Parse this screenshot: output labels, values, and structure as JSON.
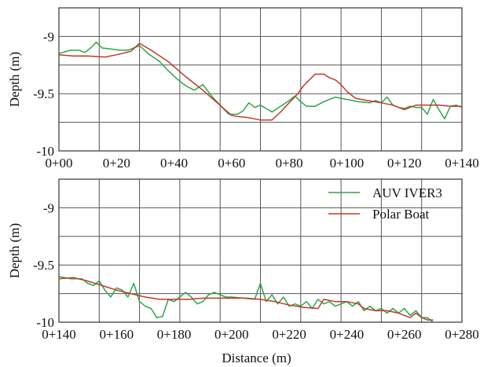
{
  "chart_data": [
    {
      "type": "line",
      "ylabel": "Depth (m)",
      "xlim": [
        0,
        140
      ],
      "ylim": [
        -10,
        -8.75
      ],
      "x_ticks": [
        0,
        20,
        40,
        60,
        80,
        100,
        120,
        140
      ],
      "x_tick_labels": [
        "0+00",
        "0+20",
        "0+40",
        "0+60",
        "0+80",
        "0+100",
        "0+120",
        "0+140"
      ],
      "y_ticks": [
        -9,
        -9.5,
        -10
      ],
      "y_tick_labels": [
        "-9",
        "-9.5",
        "-10"
      ],
      "grid": true,
      "series": [
        {
          "name": "AUV IVER3",
          "color": "#2ca64a",
          "points": [
            [
              0,
              -9.15
            ],
            [
              4,
              -9.12
            ],
            [
              7,
              -9.12
            ],
            [
              9,
              -9.14
            ],
            [
              11,
              -9.1
            ],
            [
              13,
              -9.05
            ],
            [
              15,
              -9.1
            ],
            [
              18,
              -9.11
            ],
            [
              21,
              -9.12
            ],
            [
              24,
              -9.12
            ],
            [
              26,
              -9.1
            ],
            [
              28,
              -9.08
            ],
            [
              31,
              -9.15
            ],
            [
              35,
              -9.22
            ],
            [
              38,
              -9.3
            ],
            [
              41,
              -9.37
            ],
            [
              44,
              -9.43
            ],
            [
              47,
              -9.47
            ],
            [
              50,
              -9.42
            ],
            [
              53,
              -9.52
            ],
            [
              56,
              -9.6
            ],
            [
              59,
              -9.68
            ],
            [
              62,
              -9.68
            ],
            [
              64,
              -9.65
            ],
            [
              66,
              -9.58
            ],
            [
              68,
              -9.62
            ],
            [
              70,
              -9.6
            ],
            [
              72,
              -9.63
            ],
            [
              74,
              -9.66
            ],
            [
              77,
              -9.61
            ],
            [
              80,
              -9.56
            ],
            [
              82,
              -9.52
            ],
            [
              84,
              -9.57
            ],
            [
              86,
              -9.61
            ],
            [
              89,
              -9.61
            ],
            [
              92,
              -9.57
            ],
            [
              96,
              -9.53
            ],
            [
              100,
              -9.55
            ],
            [
              104,
              -9.57
            ],
            [
              108,
              -9.58
            ],
            [
              110,
              -9.56
            ],
            [
              112,
              -9.58
            ],
            [
              114,
              -9.53
            ],
            [
              116,
              -9.6
            ],
            [
              118,
              -9.62
            ],
            [
              120,
              -9.63
            ],
            [
              122,
              -9.61
            ],
            [
              124,
              -9.62
            ],
            [
              126,
              -9.62
            ],
            [
              128,
              -9.68
            ],
            [
              130,
              -9.55
            ],
            [
              132,
              -9.64
            ],
            [
              134,
              -9.72
            ],
            [
              136,
              -9.61
            ],
            [
              138,
              -9.6
            ],
            [
              140,
              -9.62
            ]
          ]
        },
        {
          "name": "Polar Boat",
          "color": "#c0392b",
          "points": [
            [
              0,
              -9.16
            ],
            [
              5,
              -9.17
            ],
            [
              10,
              -9.17
            ],
            [
              16,
              -9.18
            ],
            [
              20,
              -9.16
            ],
            [
              25,
              -9.13
            ],
            [
              28,
              -9.06
            ],
            [
              32,
              -9.12
            ],
            [
              38,
              -9.22
            ],
            [
              44,
              -9.35
            ],
            [
              50,
              -9.47
            ],
            [
              55,
              -9.58
            ],
            [
              60,
              -9.69
            ],
            [
              62,
              -9.7
            ],
            [
              66,
              -9.71
            ],
            [
              70,
              -9.73
            ],
            [
              74,
              -9.73
            ],
            [
              77,
              -9.66
            ],
            [
              80,
              -9.58
            ],
            [
              83,
              -9.5
            ],
            [
              85,
              -9.43
            ],
            [
              87,
              -9.38
            ],
            [
              89,
              -9.33
            ],
            [
              92,
              -9.33
            ],
            [
              94,
              -9.36
            ],
            [
              96,
              -9.38
            ],
            [
              98,
              -9.42
            ],
            [
              100,
              -9.48
            ],
            [
              103,
              -9.54
            ],
            [
              107,
              -9.56
            ],
            [
              112,
              -9.58
            ],
            [
              116,
              -9.6
            ],
            [
              120,
              -9.64
            ],
            [
              124,
              -9.6
            ],
            [
              128,
              -9.6
            ],
            [
              132,
              -9.6
            ],
            [
              136,
              -9.61
            ],
            [
              140,
              -9.61
            ]
          ]
        }
      ]
    },
    {
      "type": "line",
      "ylabel": "Depth (m)",
      "xlabel": "Distance (m)",
      "xlim": [
        140,
        280
      ],
      "ylim": [
        -10,
        -8.75
      ],
      "x_ticks": [
        140,
        160,
        180,
        200,
        220,
        240,
        260,
        280
      ],
      "x_tick_labels": [
        "0+140",
        "0+160",
        "0+180",
        "0+200",
        "0+220",
        "0+240",
        "0+260",
        "0+280"
      ],
      "y_ticks": [
        -9,
        -9.5,
        -10
      ],
      "y_tick_labels": [
        "-9",
        "-9.5",
        "-10"
      ],
      "grid": true,
      "legend_position": "top-right",
      "series": [
        {
          "name": "AUV IVER3",
          "color": "#2ca64a",
          "points": [
            [
              140,
              -9.6
            ],
            [
              144,
              -9.62
            ],
            [
              148,
              -9.62
            ],
            [
              150,
              -9.66
            ],
            [
              152,
              -9.68
            ],
            [
              154,
              -9.64
            ],
            [
              156,
              -9.72
            ],
            [
              158,
              -9.78
            ],
            [
              160,
              -9.7
            ],
            [
              162,
              -9.72
            ],
            [
              164,
              -9.78
            ],
            [
              166,
              -9.66
            ],
            [
              168,
              -9.82
            ],
            [
              170,
              -9.86
            ],
            [
              172,
              -9.88
            ],
            [
              174,
              -9.96
            ],
            [
              176,
              -9.95
            ],
            [
              178,
              -9.8
            ],
            [
              180,
              -9.82
            ],
            [
              182,
              -9.78
            ],
            [
              184,
              -9.74
            ],
            [
              186,
              -9.78
            ],
            [
              188,
              -9.84
            ],
            [
              190,
              -9.82
            ],
            [
              192,
              -9.76
            ],
            [
              194,
              -9.74
            ],
            [
              196,
              -9.76
            ],
            [
              198,
              -9.78
            ],
            [
              200,
              -9.78
            ],
            [
              204,
              -9.79
            ],
            [
              208,
              -9.8
            ],
            [
              210,
              -9.66
            ],
            [
              212,
              -9.82
            ],
            [
              214,
              -9.76
            ],
            [
              216,
              -9.84
            ],
            [
              218,
              -9.78
            ],
            [
              220,
              -9.86
            ],
            [
              222,
              -9.84
            ],
            [
              224,
              -9.86
            ],
            [
              226,
              -9.82
            ],
            [
              228,
              -9.88
            ],
            [
              230,
              -9.8
            ],
            [
              232,
              -9.84
            ],
            [
              234,
              -9.82
            ],
            [
              236,
              -9.86
            ],
            [
              238,
              -9.84
            ],
            [
              240,
              -9.82
            ],
            [
              242,
              -9.86
            ],
            [
              244,
              -9.82
            ],
            [
              246,
              -9.9
            ],
            [
              248,
              -9.86
            ],
            [
              250,
              -9.9
            ],
            [
              252,
              -9.88
            ],
            [
              254,
              -9.92
            ],
            [
              256,
              -9.88
            ],
            [
              258,
              -9.92
            ],
            [
              260,
              -9.88
            ],
            [
              262,
              -9.94
            ],
            [
              264,
              -9.9
            ],
            [
              266,
              -9.96
            ],
            [
              268,
              -9.96
            ],
            [
              270,
              -10.0
            ]
          ]
        },
        {
          "name": "Polar Boat",
          "color": "#c0392b",
          "points": [
            [
              140,
              -9.62
            ],
            [
              145,
              -9.61
            ],
            [
              150,
              -9.64
            ],
            [
              155,
              -9.68
            ],
            [
              160,
              -9.72
            ],
            [
              165,
              -9.75
            ],
            [
              170,
              -9.78
            ],
            [
              175,
              -9.8
            ],
            [
              180,
              -9.8
            ],
            [
              185,
              -9.8
            ],
            [
              190,
              -9.79
            ],
            [
              195,
              -9.79
            ],
            [
              200,
              -9.79
            ],
            [
              205,
              -9.79
            ],
            [
              210,
              -9.8
            ],
            [
              215,
              -9.82
            ],
            [
              220,
              -9.85
            ],
            [
              225,
              -9.87
            ],
            [
              230,
              -9.88
            ],
            [
              232,
              -9.8
            ],
            [
              236,
              -9.82
            ],
            [
              240,
              -9.82
            ],
            [
              244,
              -9.84
            ],
            [
              246,
              -9.88
            ],
            [
              250,
              -9.9
            ],
            [
              254,
              -9.9
            ],
            [
              258,
              -9.92
            ],
            [
              262,
              -9.96
            ],
            [
              264,
              -9.92
            ],
            [
              266,
              -9.96
            ],
            [
              268,
              -9.98
            ],
            [
              270,
              -9.98
            ]
          ]
        }
      ]
    }
  ],
  "legend": {
    "items": [
      {
        "label": "AUV IVER3",
        "color": "#2ca64a"
      },
      {
        "label": "Polar Boat",
        "color": "#c0392b"
      }
    ]
  }
}
